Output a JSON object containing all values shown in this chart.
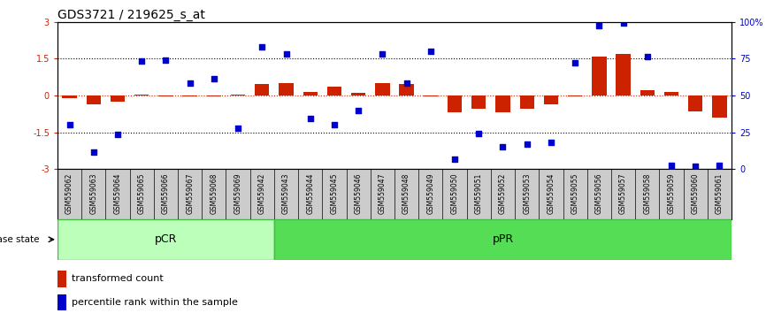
{
  "title": "GDS3721 / 219625_s_at",
  "samples": [
    "GSM559062",
    "GSM559063",
    "GSM559064",
    "GSM559065",
    "GSM559066",
    "GSM559067",
    "GSM559068",
    "GSM559069",
    "GSM559042",
    "GSM559043",
    "GSM559044",
    "GSM559045",
    "GSM559046",
    "GSM559047",
    "GSM559048",
    "GSM559049",
    "GSM559050",
    "GSM559051",
    "GSM559052",
    "GSM559053",
    "GSM559054",
    "GSM559055",
    "GSM559056",
    "GSM559057",
    "GSM559058",
    "GSM559059",
    "GSM559060",
    "GSM559061"
  ],
  "red_bars": [
    -0.1,
    -0.35,
    -0.25,
    0.05,
    -0.05,
    -0.05,
    -0.05,
    0.05,
    0.45,
    0.5,
    0.15,
    0.35,
    0.1,
    0.5,
    0.45,
    -0.05,
    -0.7,
    -0.55,
    -0.7,
    -0.55,
    -0.35,
    -0.05,
    1.6,
    1.7,
    0.2,
    0.15,
    -0.65,
    -0.9
  ],
  "blue_dots": [
    -1.2,
    -2.3,
    -1.6,
    1.4,
    1.45,
    0.5,
    0.7,
    -1.35,
    2.0,
    1.7,
    -0.95,
    -1.2,
    -0.6,
    1.7,
    0.5,
    1.8,
    -2.6,
    -1.55,
    -2.1,
    -2.0,
    -1.9,
    1.35,
    2.85,
    2.95,
    1.6,
    -2.85,
    -2.9,
    -2.85
  ],
  "pCR_count": 9,
  "pPR_count": 19,
  "ylim": [
    -3,
    3
  ],
  "yticks_left": [
    -3,
    -1.5,
    0,
    1.5,
    3
  ],
  "yticks_right": [
    0,
    25,
    50,
    75,
    100
  ],
  "hlines": [
    -1.5,
    1.5
  ],
  "bar_color": "#cc2200",
  "dot_color": "#0000cc",
  "pcr_color": "#bbffbb",
  "ppr_color": "#55dd55",
  "label_color_left": "#cc2200",
  "label_color_right": "#0000cc",
  "title_fontsize": 10,
  "tick_fontsize": 7,
  "bar_width": 0.6,
  "xtick_bg": "#cccccc"
}
